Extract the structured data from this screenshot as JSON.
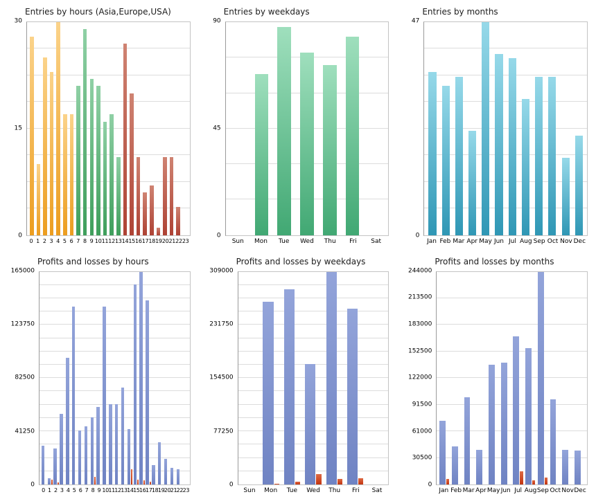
{
  "palette": {
    "orange": [
      "#FBD38A",
      "#EC9D1F"
    ],
    "green": [
      "#8FD0A5",
      "#3E9E5B"
    ],
    "red": [
      "#CF8372",
      "#AE4234"
    ],
    "weekday_green": [
      "#9FDFBD",
      "#41A873"
    ],
    "teal": [
      "#96D9E9",
      "#2F97B5"
    ],
    "profit_blue": [
      "#93A4DA",
      "#6F83C3"
    ],
    "loss_red": [
      "#DD6A44",
      "#C23410"
    ]
  },
  "chart_data": [
    {
      "type": "bar",
      "title": "Entries by hours (Asia,Europe,USA)",
      "categories": [
        "0",
        "1",
        "2",
        "3",
        "4",
        "5",
        "6",
        "7",
        "8",
        "9",
        "10",
        "11",
        "12",
        "13",
        "14",
        "15",
        "16",
        "17",
        "18",
        "19",
        "20",
        "21",
        "22",
        "23"
      ],
      "values": [
        28,
        10,
        25,
        23,
        30,
        17,
        17,
        21,
        29,
        22,
        21,
        16,
        17,
        11,
        27,
        20,
        11,
        6,
        7,
        1,
        11,
        11,
        4,
        0
      ],
      "color_keys": [
        "orange",
        "orange",
        "orange",
        "orange",
        "orange",
        "orange",
        "orange",
        "green",
        "green",
        "green",
        "green",
        "green",
        "green",
        "green",
        "red",
        "red",
        "red",
        "red",
        "red",
        "red",
        "red",
        "red",
        "red",
        "red"
      ],
      "ylim": [
        0,
        30
      ],
      "ylabels": [
        0,
        15,
        30
      ],
      "grid_divisions": 8,
      "grid": true,
      "legend": "none"
    },
    {
      "type": "bar",
      "title": "Entries by weekdays",
      "categories": [
        "Sun",
        "Mon",
        "Tue",
        "Wed",
        "Thu",
        "Fri",
        "Sat"
      ],
      "values": [
        0,
        68,
        88,
        77,
        72,
        84,
        0
      ],
      "color": "weekday_green",
      "ylim": [
        0,
        90
      ],
      "ylabels": [
        0,
        45,
        90
      ],
      "grid_divisions": 6,
      "grid": true,
      "legend": "none"
    },
    {
      "type": "bar",
      "title": "Entries by months",
      "categories": [
        "Jan",
        "Feb",
        "Mar",
        "Apr",
        "May",
        "Jun",
        "Jul",
        "Aug",
        "Sep",
        "Oct",
        "Nov",
        "Dec"
      ],
      "values": [
        36,
        33,
        35,
        23,
        47,
        40,
        39,
        30,
        35,
        35,
        17,
        22
      ],
      "color": "teal",
      "ylim": [
        0,
        47
      ],
      "ylabels": [
        0,
        47
      ],
      "grid_divisions": 8,
      "grid": true,
      "legend": "none"
    },
    {
      "type": "bar",
      "title": "Profits and losses by hours",
      "categories": [
        "0",
        "1",
        "2",
        "3",
        "4",
        "5",
        "6",
        "7",
        "8",
        "9",
        "10",
        "11",
        "12",
        "13",
        "14",
        "15",
        "16",
        "17",
        "18",
        "19",
        "20",
        "21",
        "22",
        "23"
      ],
      "series": [
        {
          "name": "profit",
          "color": "profit_blue",
          "values": [
            30000,
            5000,
            28000,
            55000,
            98000,
            138000,
            42000,
            45000,
            52000,
            60000,
            138000,
            62000,
            62000,
            75000,
            43000,
            155000,
            165000,
            143000,
            15000,
            33000,
            20000,
            13000,
            12000,
            0
          ]
        },
        {
          "name": "loss",
          "color": "loss_red",
          "values": [
            0,
            4000,
            1500,
            0,
            0,
            0,
            0,
            0,
            6000,
            0,
            0,
            0,
            0,
            0,
            12000,
            4000,
            3000,
            2000,
            0,
            0,
            0,
            0,
            0,
            0
          ]
        }
      ],
      "ylim": [
        0,
        165000
      ],
      "ylabels": [
        0,
        41250,
        82500,
        123750,
        165000
      ],
      "grid_divisions": 16,
      "grid": true,
      "legend": "none"
    },
    {
      "type": "bar",
      "title": "Profits and losses by weekdays",
      "categories": [
        "Sun",
        "Mon",
        "Tue",
        "Wed",
        "Thu",
        "Fri",
        "Sat"
      ],
      "series": [
        {
          "name": "profit",
          "color": "profit_blue",
          "values": [
            0,
            265000,
            283000,
            175000,
            309000,
            255000,
            0
          ]
        },
        {
          "name": "loss",
          "color": "loss_red",
          "values": [
            0,
            1000,
            4000,
            15000,
            8000,
            9000,
            0
          ]
        }
      ],
      "ylim": [
        0,
        309000
      ],
      "ylabels": [
        0,
        77250,
        154500,
        231750,
        309000
      ],
      "grid_divisions": 16,
      "grid": true,
      "legend": "none"
    },
    {
      "type": "bar",
      "title": "Profits and losses by months",
      "categories": [
        "Jan",
        "Feb",
        "Mar",
        "Apr",
        "May",
        "Jun",
        "Jul",
        "Aug",
        "Sep",
        "Oct",
        "Nov",
        "Dec"
      ],
      "series": [
        {
          "name": "profit",
          "color": "profit_blue",
          "values": [
            73000,
            44000,
            100000,
            40000,
            137000,
            140000,
            170000,
            156000,
            244000,
            98000,
            40000,
            39000
          ]
        },
        {
          "name": "loss",
          "color": "loss_red",
          "values": [
            6000,
            0,
            0,
            0,
            0,
            0,
            15000,
            5000,
            8000,
            0,
            0,
            0
          ]
        }
      ],
      "ylim": [
        0,
        244000
      ],
      "ylabels": [
        0,
        30500,
        61000,
        91500,
        122000,
        152500,
        183000,
        213500,
        244000
      ],
      "grid_divisions": 8,
      "grid": true,
      "legend": "none"
    }
  ]
}
